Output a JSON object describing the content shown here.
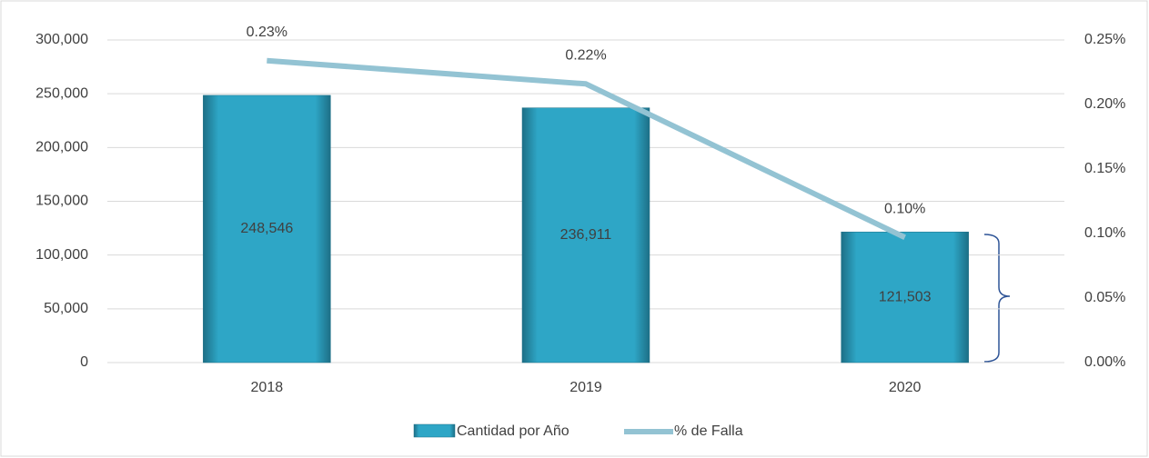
{
  "chart_data": {
    "type": "bar_line",
    "categories": [
      "2018",
      "2019",
      "2020"
    ],
    "series": [
      {
        "name": "Cantidad por Año",
        "color": "#2ea6c6",
        "values": [
          248546,
          236911,
          121503
        ],
        "value_labels": [
          "248,546",
          "236,911",
          "121,503"
        ]
      },
      {
        "name": "% de Falla",
        "color": "#93c3d3",
        "axis": "y2",
        "values": [
          0.234,
          0.216,
          0.097
        ],
        "value_labels": [
          "0.23%",
          "0.22%",
          "0.10%"
        ]
      }
    ],
    "ylim": [
      0,
      300000
    ],
    "yticks": [
      0,
      {
        "value": 50000,
        "label": "50,000"
      },
      {
        "value": 100000,
        "label": "100,000"
      },
      {
        "value": 150000,
        "label": "150,000"
      },
      {
        "value": 200000,
        "label": "200,000"
      },
      {
        "value": 250000,
        "label": "250,000"
      },
      {
        "value": 300000,
        "label": "300,000"
      }
    ],
    "y2lim": [
      0,
      0.25
    ],
    "y2ticks": [
      {
        "value": 0,
        "label": "0.00%"
      },
      {
        "value": 0.05,
        "label": "0.05%"
      },
      {
        "value": 0.1,
        "label": "0.10%"
      },
      {
        "value": 0.15,
        "label": "0.15%"
      },
      {
        "value": 0.2,
        "label": "0.20%"
      },
      {
        "value": 0.25,
        "label": "0.25%"
      }
    ],
    "grid": true,
    "legend": "bottom"
  }
}
